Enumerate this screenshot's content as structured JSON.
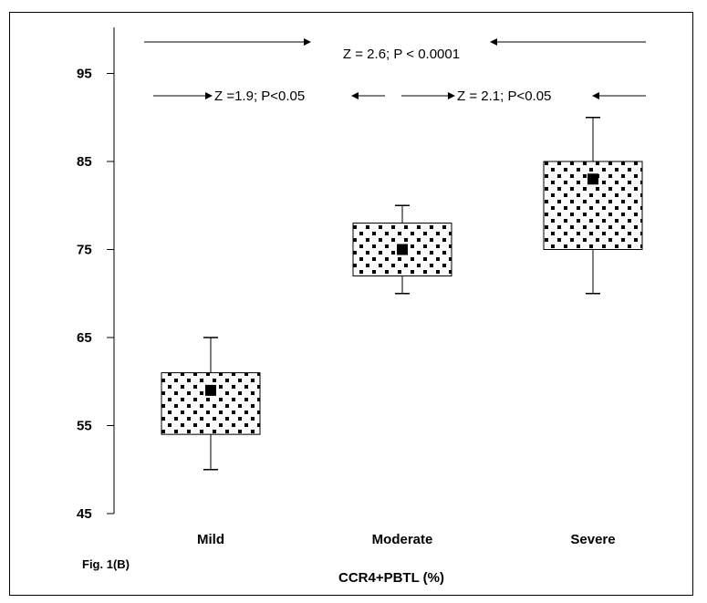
{
  "chart_data": {
    "type": "box",
    "xlabel": "CCR4+PBTL (%)",
    "figure_label": "Fig. 1(B)",
    "ylim": [
      45,
      100
    ],
    "yticks": [
      45,
      55,
      65,
      75,
      85,
      95
    ],
    "categories": [
      "Mild",
      "Moderate",
      "Severe"
    ],
    "boxes": [
      {
        "category": "Mild",
        "min": 50,
        "q1": 54,
        "mean": 59,
        "q3": 61,
        "max": 65
      },
      {
        "category": "Moderate",
        "min": 70,
        "q1": 72,
        "mean": 75,
        "q3": 78,
        "max": 80
      },
      {
        "category": "Severe",
        "min": 70,
        "q1": 75,
        "mean": 83,
        "q3": 85,
        "max": 90
      }
    ],
    "annotations": [
      {
        "text": "Z = 2.6; P < 0.0001",
        "from": "Mild",
        "to": "Severe",
        "y": 99
      },
      {
        "text": "Z =1.9; P<0.05",
        "from": "Mild",
        "to": "Moderate",
        "y": 92
      },
      {
        "text": "Z = 2.1; P<0.05",
        "from": "Moderate",
        "to": "Severe",
        "y": 92
      }
    ]
  }
}
